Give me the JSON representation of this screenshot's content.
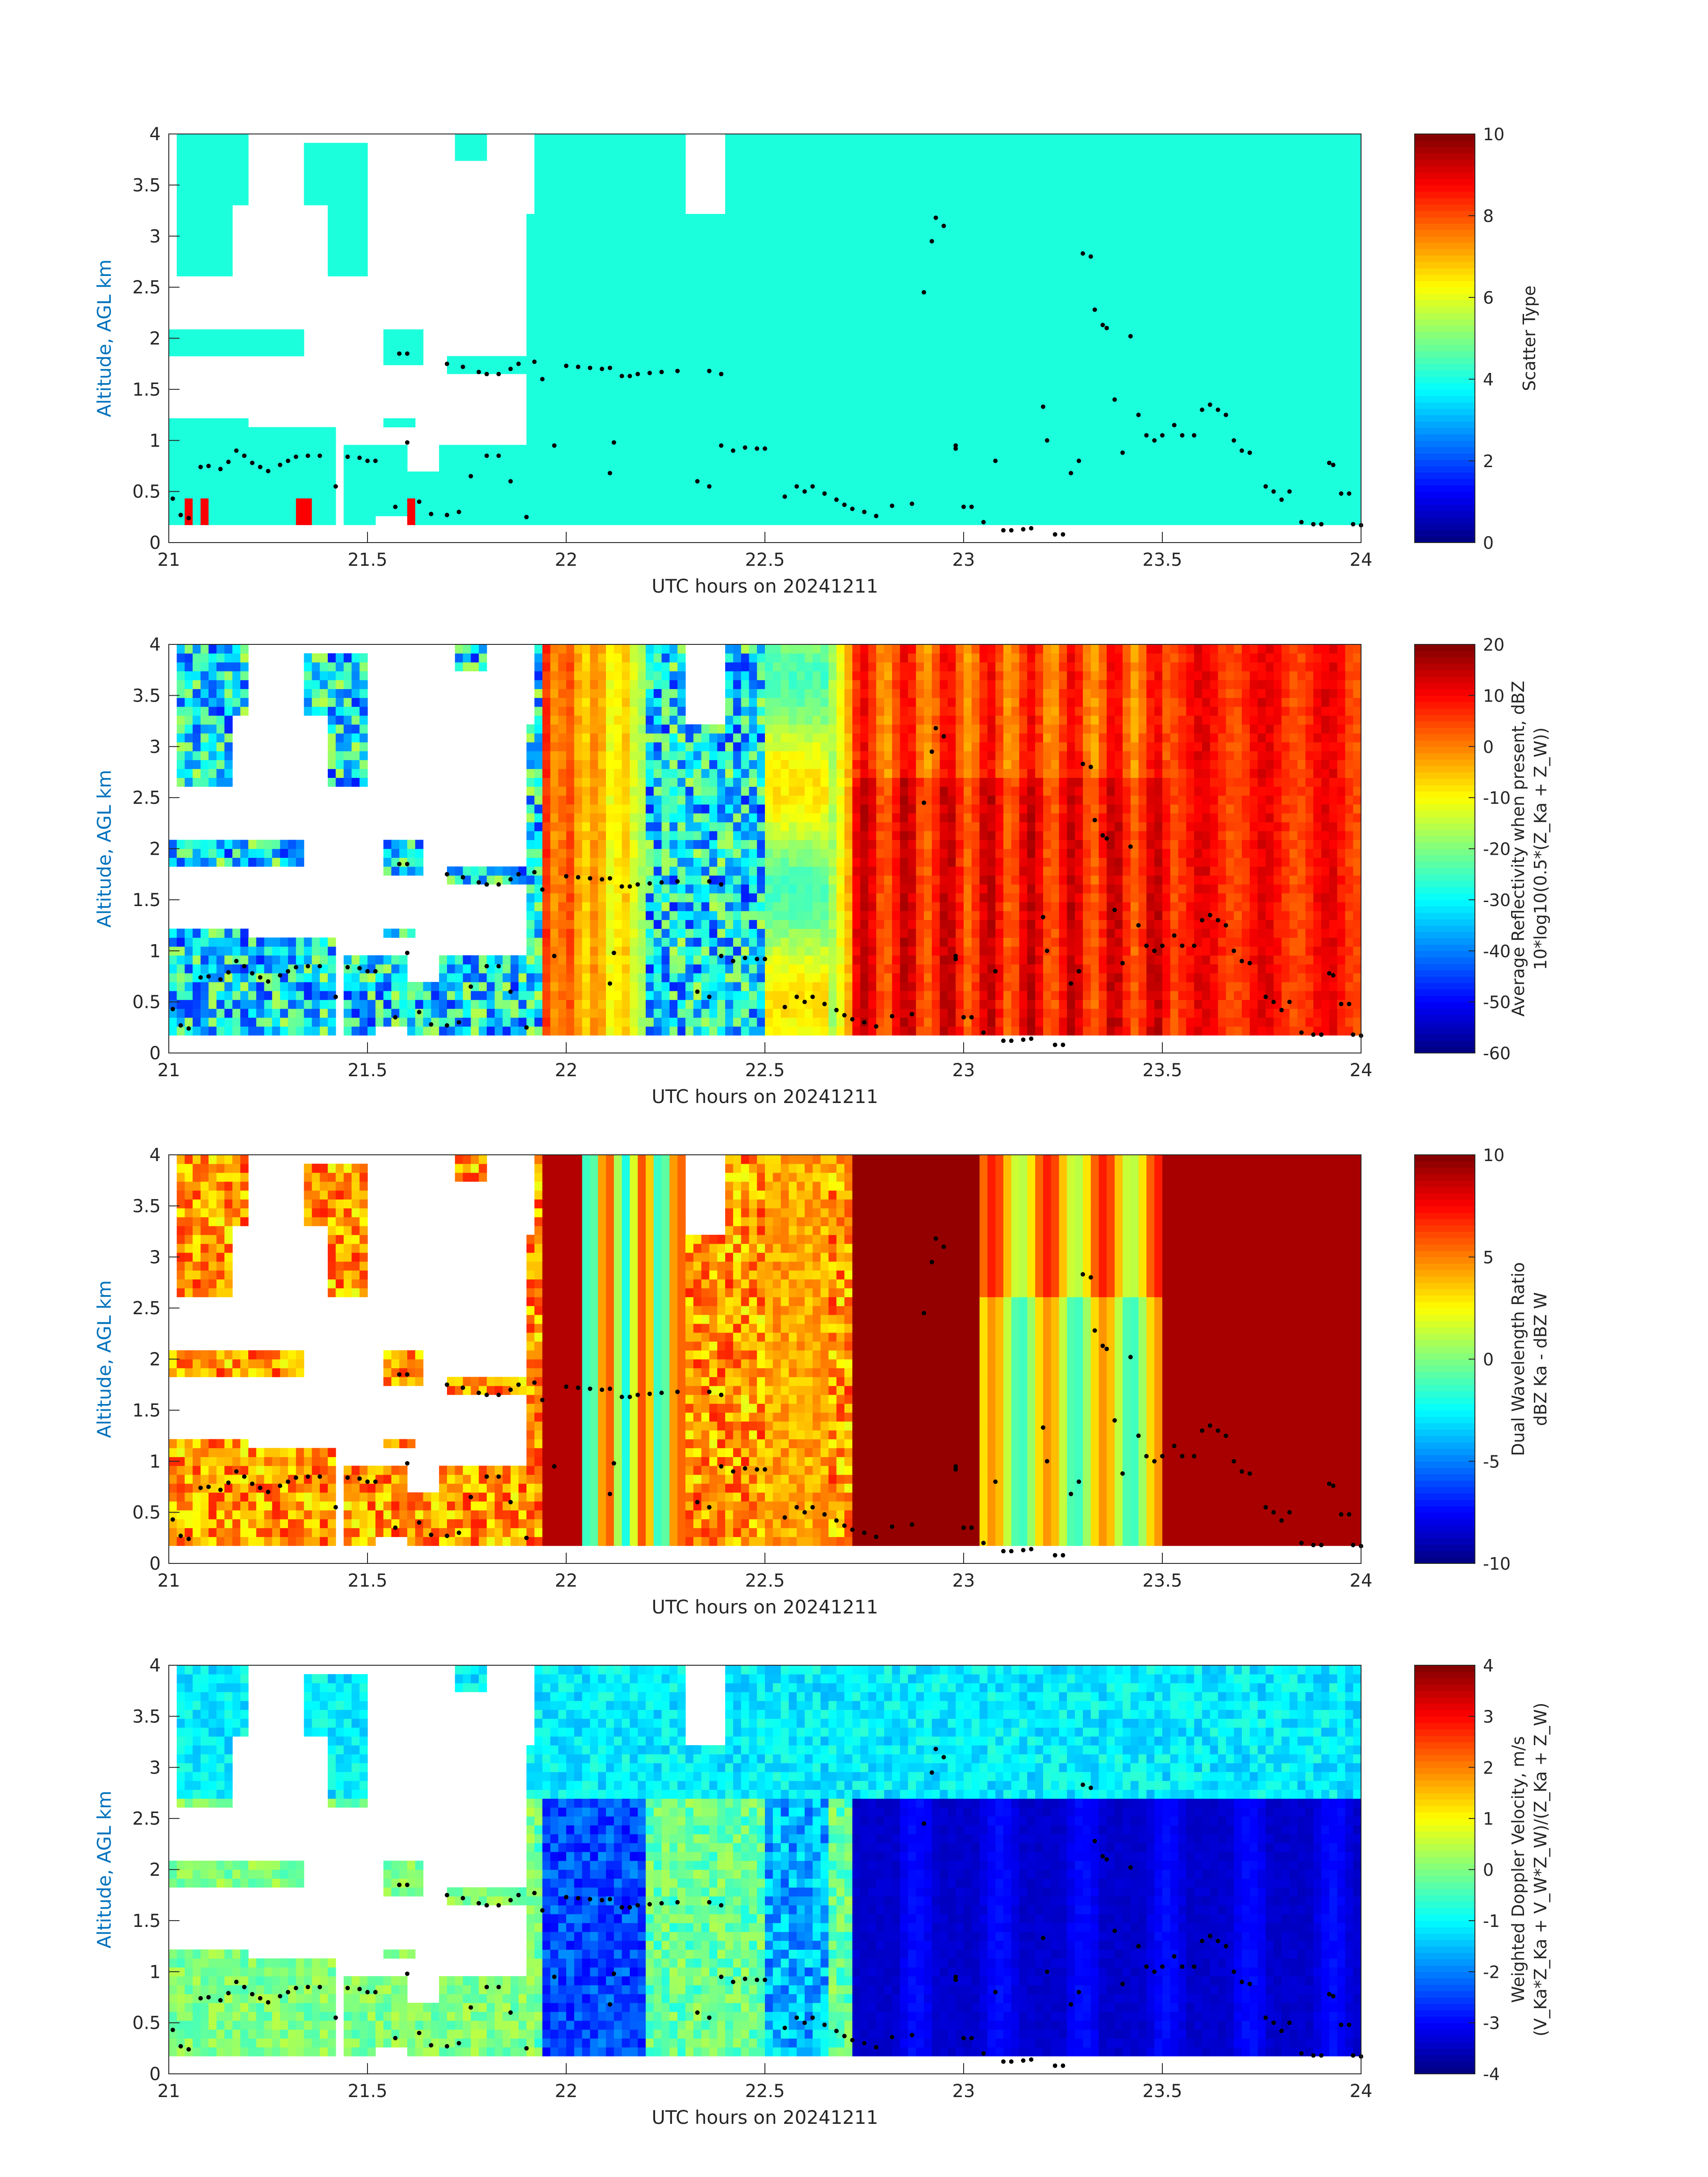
{
  "figure": {
    "background": "#ffffff"
  },
  "style": {
    "axis_label_color": "#0072bd",
    "text_color": "#262626",
    "axis_color": "#262626",
    "echo_fill": "#1cffdc",
    "marker_color": "#000000"
  },
  "chart_data": [
    {
      "type": "heatmap",
      "xlabel": "UTC hours on 20241211",
      "ylabel": "Altitude, AGL km",
      "xlim": [
        21,
        24
      ],
      "ylim": [
        0,
        4
      ],
      "xticks": [
        "21",
        "21.5",
        "22",
        "22.5",
        "23",
        "23.5",
        "24"
      ],
      "yticks": [
        "0",
        "0.5",
        "1",
        "1.5",
        "2",
        "2.5",
        "3",
        "3.5",
        "4"
      ],
      "colorbar": {
        "title_lines": [
          "Scatter Type"
        ],
        "ticks": [
          "0",
          "2",
          "4",
          "6",
          "8",
          "10"
        ],
        "range": [
          0,
          10
        ]
      },
      "colormap": "jet",
      "field": "scatter_type"
    },
    {
      "type": "heatmap",
      "xlabel": "UTC hours on 20241211",
      "ylabel": "Altitude, AGL km",
      "xlim": [
        21,
        24
      ],
      "ylim": [
        0,
        4
      ],
      "xticks": [
        "21",
        "21.5",
        "22",
        "22.5",
        "23",
        "23.5",
        "24"
      ],
      "yticks": [
        "0",
        "0.5",
        "1",
        "1.5",
        "2",
        "2.5",
        "3",
        "3.5",
        "4"
      ],
      "colorbar": {
        "title_lines": [
          "Average Reflectivity when present, dBZ",
          "10*log10(0.5*(Z_Ka + Z_W))"
        ],
        "ticks": [
          "-60",
          "-50",
          "-40",
          "-30",
          "-20",
          "-10",
          "0",
          "10",
          "20"
        ],
        "range": [
          -60,
          20
        ]
      },
      "colormap": "jet",
      "field": "reflectivity"
    },
    {
      "type": "heatmap",
      "xlabel": "UTC hours on 20241211",
      "ylabel": "Altitude, AGL km",
      "xlim": [
        21,
        24
      ],
      "ylim": [
        0,
        4
      ],
      "xticks": [
        "21",
        "21.5",
        "22",
        "22.5",
        "23",
        "23.5",
        "24"
      ],
      "yticks": [
        "0",
        "0.5",
        "1",
        "1.5",
        "2",
        "2.5",
        "3",
        "3.5",
        "4"
      ],
      "colorbar": {
        "title_lines": [
          "Dual Wavelength Ratio",
          "dBZ Ka - dBZ W"
        ],
        "ticks": [
          "-10",
          "-5",
          "0",
          "5",
          "10"
        ],
        "range": [
          -10,
          10
        ]
      },
      "colormap": "jet",
      "field": "dwr"
    },
    {
      "type": "heatmap",
      "xlabel": "UTC hours on 20241211",
      "ylabel": "Altitude, AGL km",
      "xlim": [
        21,
        24
      ],
      "ylim": [
        0,
        4
      ],
      "xticks": [
        "21",
        "21.5",
        "22",
        "22.5",
        "23",
        "23.5",
        "24"
      ],
      "yticks": [
        "0",
        "0.5",
        "1",
        "1.5",
        "2",
        "2.5",
        "3",
        "3.5",
        "4"
      ],
      "colorbar": {
        "title_lines": [
          "Weighted Doppler Velocity, m/s",
          "(V_Ka*Z_Ka + V_W*Z_W)/(Z_Ka + Z_W)"
        ],
        "ticks": [
          "-4",
          "-3",
          "-2",
          "-1",
          "0",
          "1",
          "2",
          "3",
          "4"
        ],
        "range": [
          -4,
          4
        ]
      },
      "colormap": "jet",
      "field": "velocity"
    }
  ],
  "cloud_base_markers": {
    "note_units": "x in UTC hours, y in km AGL",
    "points": [
      [
        21.01,
        0.43
      ],
      [
        21.03,
        0.27
      ],
      [
        21.05,
        0.24
      ],
      [
        21.08,
        0.74
      ],
      [
        21.1,
        0.75
      ],
      [
        21.13,
        0.72
      ],
      [
        21.15,
        0.79
      ],
      [
        21.17,
        0.9
      ],
      [
        21.19,
        0.85
      ],
      [
        21.21,
        0.78
      ],
      [
        21.23,
        0.74
      ],
      [
        21.25,
        0.7
      ],
      [
        21.28,
        0.76
      ],
      [
        21.3,
        0.8
      ],
      [
        21.32,
        0.84
      ],
      [
        21.35,
        0.85
      ],
      [
        21.38,
        0.85
      ],
      [
        21.42,
        0.55
      ],
      [
        21.45,
        0.84
      ],
      [
        21.48,
        0.83
      ],
      [
        21.5,
        0.8
      ],
      [
        21.52,
        0.8
      ],
      [
        21.57,
        0.35
      ],
      [
        21.6,
        0.98
      ],
      [
        21.63,
        0.4
      ],
      [
        21.66,
        0.28
      ],
      [
        21.7,
        0.27
      ],
      [
        21.73,
        0.3
      ],
      [
        21.76,
        0.65
      ],
      [
        21.8,
        0.85
      ],
      [
        21.83,
        0.85
      ],
      [
        21.86,
        0.6
      ],
      [
        21.9,
        0.25
      ],
      [
        21.58,
        1.85
      ],
      [
        21.6,
        1.85
      ],
      [
        21.7,
        1.75
      ],
      [
        21.74,
        1.72
      ],
      [
        21.78,
        1.67
      ],
      [
        21.8,
        1.65
      ],
      [
        21.83,
        1.65
      ],
      [
        21.86,
        1.7
      ],
      [
        21.88,
        1.75
      ],
      [
        21.92,
        1.77
      ],
      [
        21.94,
        1.6
      ],
      [
        21.97,
        0.95
      ],
      [
        22.0,
        1.73
      ],
      [
        22.03,
        1.72
      ],
      [
        22.06,
        1.71
      ],
      [
        22.09,
        1.7
      ],
      [
        22.11,
        1.71
      ],
      [
        22.14,
        1.63
      ],
      [
        22.16,
        1.63
      ],
      [
        22.18,
        1.65
      ],
      [
        22.21,
        1.66
      ],
      [
        22.24,
        1.67
      ],
      [
        22.11,
        0.68
      ],
      [
        22.12,
        0.98
      ],
      [
        22.28,
        1.68
      ],
      [
        22.33,
        0.6
      ],
      [
        22.36,
        0.55
      ],
      [
        22.39,
        0.95
      ],
      [
        22.42,
        0.9
      ],
      [
        22.45,
        0.93
      ],
      [
        22.48,
        0.92
      ],
      [
        22.5,
        0.92
      ],
      [
        22.36,
        1.68
      ],
      [
        22.39,
        1.65
      ],
      [
        22.55,
        0.45
      ],
      [
        22.58,
        0.55
      ],
      [
        22.6,
        0.5
      ],
      [
        22.62,
        0.55
      ],
      [
        22.65,
        0.48
      ],
      [
        22.68,
        0.42
      ],
      [
        22.7,
        0.37
      ],
      [
        22.72,
        0.33
      ],
      [
        22.75,
        0.3
      ],
      [
        22.78,
        0.26
      ],
      [
        22.82,
        0.36
      ],
      [
        22.87,
        0.38
      ],
      [
        22.9,
        2.45
      ],
      [
        22.92,
        2.95
      ],
      [
        22.93,
        3.18
      ],
      [
        22.95,
        3.1
      ],
      [
        22.98,
        0.92
      ],
      [
        22.98,
        0.95
      ],
      [
        23.0,
        0.35
      ],
      [
        23.02,
        0.35
      ],
      [
        23.05,
        0.2
      ],
      [
        23.08,
        0.8
      ],
      [
        23.1,
        0.12
      ],
      [
        23.12,
        0.12
      ],
      [
        23.15,
        0.13
      ],
      [
        23.17,
        0.14
      ],
      [
        23.2,
        1.33
      ],
      [
        23.21,
        1.0
      ],
      [
        23.23,
        0.08
      ],
      [
        23.25,
        0.08
      ],
      [
        23.27,
        0.68
      ],
      [
        23.29,
        0.8
      ],
      [
        23.3,
        2.83
      ],
      [
        23.32,
        2.8
      ],
      [
        23.33,
        2.28
      ],
      [
        23.35,
        2.13
      ],
      [
        23.36,
        2.1
      ],
      [
        23.38,
        1.4
      ],
      [
        23.4,
        0.88
      ],
      [
        23.42,
        2.02
      ],
      [
        23.44,
        1.25
      ],
      [
        23.46,
        1.05
      ],
      [
        23.48,
        1.0
      ],
      [
        23.5,
        1.05
      ],
      [
        23.53,
        1.15
      ],
      [
        23.55,
        1.05
      ],
      [
        23.58,
        1.05
      ],
      [
        23.6,
        1.3
      ],
      [
        23.62,
        1.35
      ],
      [
        23.64,
        1.3
      ],
      [
        23.66,
        1.25
      ],
      [
        23.68,
        1.0
      ],
      [
        23.7,
        0.9
      ],
      [
        23.72,
        0.88
      ],
      [
        23.76,
        0.55
      ],
      [
        23.78,
        0.5
      ],
      [
        23.8,
        0.42
      ],
      [
        23.82,
        0.5
      ],
      [
        23.85,
        0.2
      ],
      [
        23.88,
        0.18
      ],
      [
        23.9,
        0.18
      ],
      [
        23.92,
        0.78
      ],
      [
        23.93,
        0.76
      ],
      [
        23.95,
        0.48
      ],
      [
        23.97,
        0.48
      ],
      [
        23.98,
        0.18
      ],
      [
        24.0,
        0.17
      ]
    ]
  }
}
